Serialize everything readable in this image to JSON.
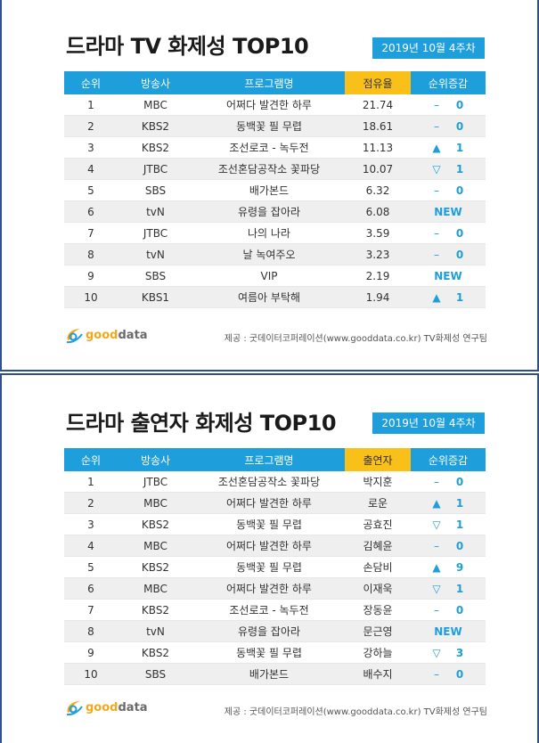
{
  "program_table": {
    "title": "드라마 TV 화제성 TOP10",
    "date": "2019년 10월 4주차",
    "headers": [
      "순위",
      "방송사",
      "프로그램명",
      "점유율",
      "순위증감"
    ],
    "rows": [
      {
        "rank": "1",
        "network": "MBC",
        "program": "어쩌다 발견한 하루",
        "share": "21.74",
        "sym": "–",
        "change": "0"
      },
      {
        "rank": "2",
        "network": "KBS2",
        "program": "동백꽃 필 무렵",
        "share": "18.61",
        "sym": "–",
        "change": "0"
      },
      {
        "rank": "3",
        "network": "KBS2",
        "program": "조선로코 - 녹두전",
        "share": "11.13",
        "sym": "▲",
        "change": "1"
      },
      {
        "rank": "4",
        "network": "JTBC",
        "program": "조선혼담공작소 꽃파당",
        "share": "10.07",
        "sym": "▽",
        "change": "1"
      },
      {
        "rank": "5",
        "network": "SBS",
        "program": "배가본드",
        "share": "6.32",
        "sym": "–",
        "change": "0"
      },
      {
        "rank": "6",
        "network": "tvN",
        "program": "유령을 잡아라",
        "share": "6.08",
        "sym": "",
        "change": "NEW"
      },
      {
        "rank": "7",
        "network": "JTBC",
        "program": "나의 나라",
        "share": "3.59",
        "sym": "–",
        "change": "0"
      },
      {
        "rank": "8",
        "network": "tvN",
        "program": "날 녹여주오",
        "share": "3.23",
        "sym": "–",
        "change": "0"
      },
      {
        "rank": "9",
        "network": "SBS",
        "program": "VIP",
        "share": "2.19",
        "sym": "",
        "change": "NEW"
      },
      {
        "rank": "10",
        "network": "KBS1",
        "program": "여름아 부탁해",
        "share": "1.94",
        "sym": "▲",
        "change": "1"
      }
    ],
    "logo": {
      "good": "good",
      "data": "data"
    },
    "source": "제공 : 굿데이터코퍼레이션(www.gooddata.co.kr) TV화제성 연구팀"
  },
  "cast_table": {
    "title": "드라마 출연자 화제성 TOP10",
    "date": "2019년 10월 4주차",
    "headers": [
      "순위",
      "방송사",
      "프로그램명",
      "출연자",
      "순위증감"
    ],
    "rows": [
      {
        "rank": "1",
        "network": "JTBC",
        "program": "조선혼담공작소 꽃파당",
        "actor": "박지훈",
        "sym": "–",
        "change": "0"
      },
      {
        "rank": "2",
        "network": "MBC",
        "program": "어쩌다 발견한 하루",
        "actor": "로운",
        "sym": "▲",
        "change": "1"
      },
      {
        "rank": "3",
        "network": "KBS2",
        "program": "동백꽃 필 무렵",
        "actor": "공효진",
        "sym": "▽",
        "change": "1"
      },
      {
        "rank": "4",
        "network": "MBC",
        "program": "어쩌다 발견한 하루",
        "actor": "김혜윤",
        "sym": "–",
        "change": "0"
      },
      {
        "rank": "5",
        "network": "KBS2",
        "program": "동백꽃 필 무렵",
        "actor": "손담비",
        "sym": "▲",
        "change": "9"
      },
      {
        "rank": "6",
        "network": "MBC",
        "program": "어쩌다 발견한 하루",
        "actor": "이재욱",
        "sym": "▽",
        "change": "1"
      },
      {
        "rank": "7",
        "network": "KBS2",
        "program": "조선로코 - 녹두전",
        "actor": "장동윤",
        "sym": "–",
        "change": "0"
      },
      {
        "rank": "8",
        "network": "tvN",
        "program": "유령을 잡아라",
        "actor": "문근영",
        "sym": "",
        "change": "NEW"
      },
      {
        "rank": "9",
        "network": "KBS2",
        "program": "동백꽃 필 무렵",
        "actor": "강하늘",
        "sym": "▽",
        "change": "3"
      },
      {
        "rank": "10",
        "network": "SBS",
        "program": "배가본드",
        "actor": "배수지",
        "sym": "–",
        "change": "0"
      }
    ],
    "logo": {
      "good": "good",
      "data": "data"
    },
    "source": "제공 : 굿데이터코퍼레이션(www.gooddata.co.kr) TV화제성 연구팀"
  },
  "colors": {
    "header_blue": "#1e9fdc",
    "header_yellow": "#f8c018",
    "logo_orange": "#f2a81d"
  },
  "icons": {
    "logo": "gooddata-swoosh-logo-icon"
  }
}
